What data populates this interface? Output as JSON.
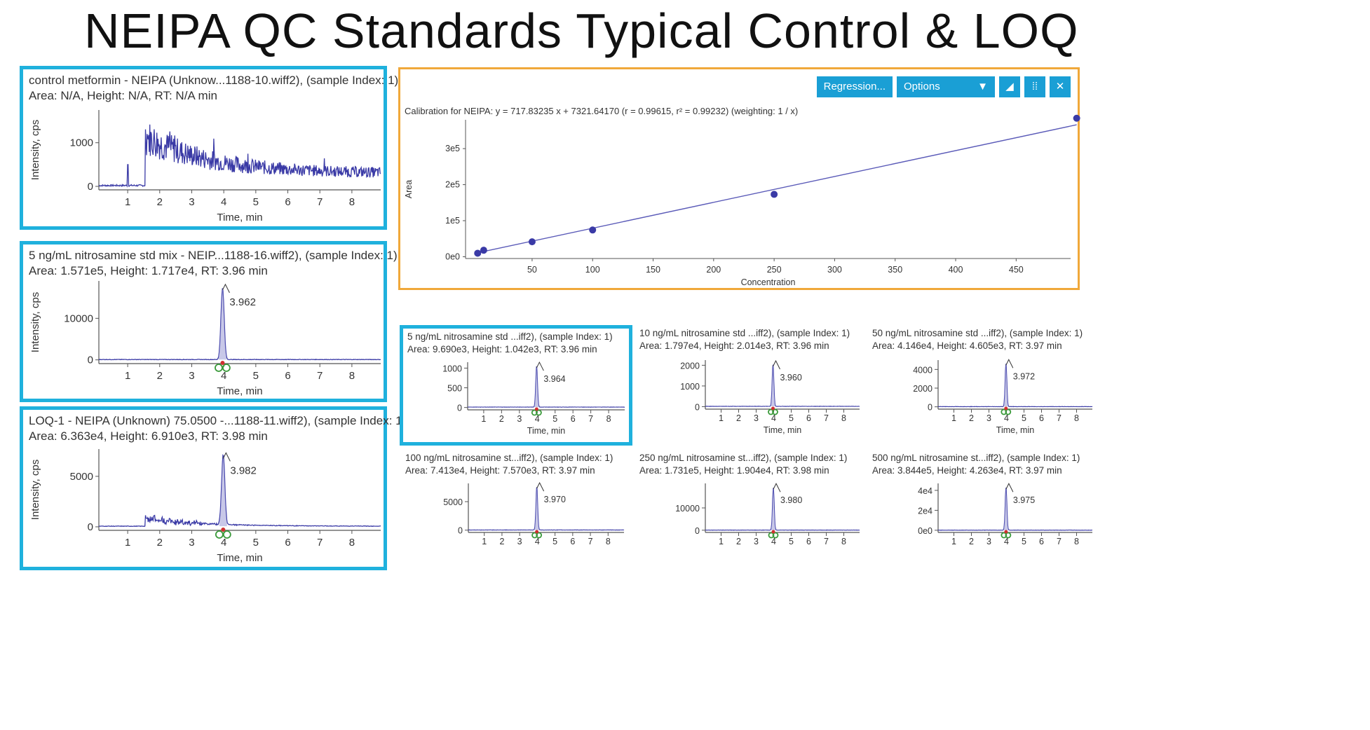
{
  "page": {
    "title": "NEIPA QC Standards Typical Control & LOQ"
  },
  "toolbar": {
    "regression_label": "Regression...",
    "options_label": "Options",
    "dropdown_glyph": "▼",
    "expand_glyph": "◢",
    "grid_glyph": "⁞⁞",
    "close_glyph": "✕"
  },
  "colors": {
    "highlight": "#1fb1dd",
    "calibration_border": "#f0a83a",
    "trace": "#3a3aa6",
    "accent": "#1a9fd5"
  },
  "calibration": {
    "equation": "Calibration for NEIPA: y = 717.83235 x + 7321.64170 (r = 0.99615, r² = 0.99232) (weighting: 1 / x)"
  },
  "chart_data": [
    {
      "id": "control",
      "type": "line",
      "title": "control metformin - NEIPA (Unknow...1188-10.wiff2), (sample Index: 1)",
      "info": "Area: N/A, Height: N/A, RT: N/A min",
      "xlabel": "Time, min",
      "ylabel": "Intensity, cps",
      "xlim": [
        0.1,
        8.9
      ],
      "ylim": [
        -80,
        1750
      ],
      "xticks": [
        "1",
        "2",
        "3",
        "4",
        "5",
        "6",
        "7",
        "8"
      ],
      "yticks": [
        "0",
        "1000"
      ],
      "profile": "noise",
      "series": [
        {
          "name": "NEIPA",
          "baseline": 20,
          "spike_time": 1.0,
          "spike_height": 500,
          "rise_time": 1.55,
          "max_level": 1150,
          "end_level": 300
        }
      ]
    },
    {
      "id": "std5",
      "type": "line",
      "title": "5 ng/mL nitrosamine std mix - NEIP...1188-16.wiff2), (sample Index: 1)",
      "info": "Area: 1.571e5, Height: 1.717e4, RT: 3.96 min",
      "xlabel": "Time, min",
      "ylabel": "Intensity, cps",
      "xlim": [
        0.1,
        8.9
      ],
      "ylim": [
        -900,
        19000
      ],
      "xticks": [
        "1",
        "2",
        "3",
        "4",
        "5",
        "6",
        "7",
        "8"
      ],
      "yticks": [
        "0",
        "10000"
      ],
      "profile": "peak",
      "series": [
        {
          "name": "NEIPA",
          "rt": 3.962,
          "height": 17170,
          "width": 0.07,
          "baseline": 80
        }
      ],
      "peak_label": "3.962"
    },
    {
      "id": "loq1",
      "type": "line",
      "title": "LOQ-1 - NEIPA (Unknown) 75.0500 -...1188-11.wiff2), (sample Index: 1)",
      "info": "Area: 6.363e4, Height: 6.910e3, RT: 3.98 min",
      "xlabel": "Time, min",
      "ylabel": "Intensity, cps",
      "xlim": [
        0.1,
        8.9
      ],
      "ylim": [
        -350,
        7700
      ],
      "xticks": [
        "1",
        "2",
        "3",
        "4",
        "5",
        "6",
        "7",
        "8"
      ],
      "yticks": [
        "0",
        "5000"
      ],
      "profile": "peak_hump",
      "series": [
        {
          "name": "NEIPA",
          "rt": 3.982,
          "height": 6910,
          "width": 0.07,
          "baseline": 60,
          "hump": 900
        }
      ],
      "peak_label": "3.982"
    },
    {
      "id": "calibration",
      "type": "scatter",
      "title": "Calibration for NEIPA",
      "xlabel": "Concentration",
      "ylabel": "Area",
      "xlim": [
        -5,
        495
      ],
      "ylim": [
        -5000,
        380000
      ],
      "xticks": [
        50,
        100,
        150,
        200,
        250,
        300,
        350,
        400,
        450
      ],
      "yticks": [
        "0e0",
        "1e5",
        "2e5",
        "3e5"
      ],
      "ytick_values": [
        0,
        100000,
        200000,
        300000
      ],
      "x": [
        5,
        10,
        50,
        100,
        250,
        500
      ],
      "y": [
        9690,
        17970,
        41460,
        74130,
        173100,
        384400
      ],
      "fit": {
        "slope": 717.83235,
        "intercept": 7321.6417
      }
    },
    {
      "id": "cal5",
      "type": "line",
      "title": "5 ng/mL nitrosamine std ...iff2), (sample Index: 1)",
      "info": "Area: 9.690e3, Height: 1.042e3, RT: 3.96 min",
      "xlabel": "Time, min",
      "xlim": [
        0.1,
        8.9
      ],
      "ylim": [
        -60,
        1150
      ],
      "xticks": [
        "1",
        "2",
        "3",
        "4",
        "5",
        "6",
        "7",
        "8"
      ],
      "yticks": [
        "0",
        "500",
        "1000"
      ],
      "series": [
        {
          "name": "NEIPA",
          "rt": 3.964,
          "height": 1042,
          "width": 0.07,
          "baseline": 10
        }
      ],
      "peak_label": "3.964"
    },
    {
      "id": "cal10",
      "type": "line",
      "title": "10 ng/mL nitrosamine std ...iff2), (sample Index: 1)",
      "info": "Area: 1.797e4, Height: 2.014e3, RT: 3.96 min",
      "xlabel": "Time, min",
      "xlim": [
        0.1,
        8.9
      ],
      "ylim": [
        -120,
        2250
      ],
      "xticks": [
        "1",
        "2",
        "3",
        "4",
        "5",
        "6",
        "7",
        "8"
      ],
      "yticks": [
        "0",
        "1000",
        "2000"
      ],
      "series": [
        {
          "name": "NEIPA",
          "rt": 3.96,
          "height": 2014,
          "width": 0.07,
          "baseline": 15
        }
      ],
      "peak_label": "3.960"
    },
    {
      "id": "cal50",
      "type": "line",
      "title": "50 ng/mL nitrosamine std ...iff2), (sample Index: 1)",
      "info": "Area: 4.146e4, Height: 4.605e3, RT: 3.97 min",
      "xlabel": "Time, min",
      "xlim": [
        0.1,
        8.9
      ],
      "ylim": [
        -250,
        5000
      ],
      "xticks": [
        "1",
        "2",
        "3",
        "4",
        "5",
        "6",
        "7",
        "8"
      ],
      "yticks": [
        "0",
        "2000",
        "4000"
      ],
      "series": [
        {
          "name": "NEIPA",
          "rt": 3.972,
          "height": 4605,
          "width": 0.07,
          "baseline": 20
        }
      ],
      "peak_label": "3.972"
    },
    {
      "id": "cal100",
      "type": "line",
      "title": "100 ng/mL nitrosamine st...iff2), (sample Index: 1)",
      "info": "Area: 7.413e4, Height: 7.570e3, RT: 3.97 min",
      "xlabel": "Time, min",
      "xlim": [
        0.1,
        8.9
      ],
      "ylim": [
        -400,
        8200
      ],
      "xticks": [
        "1",
        "2",
        "3",
        "4",
        "5",
        "6",
        "7",
        "8"
      ],
      "yticks": [
        "0",
        "5000"
      ],
      "series": [
        {
          "name": "NEIPA",
          "rt": 3.97,
          "height": 7570,
          "width": 0.07,
          "baseline": 30
        }
      ],
      "peak_label": "3.970"
    },
    {
      "id": "cal250",
      "type": "line",
      "title": "250 ng/mL nitrosamine st...iff2), (sample Index: 1)",
      "info": "Area: 1.731e5, Height: 1.904e4, RT: 3.98 min",
      "xlabel": "Time, min",
      "xlim": [
        0.1,
        8.9
      ],
      "ylim": [
        -1000,
        21000
      ],
      "xticks": [
        "1",
        "2",
        "3",
        "4",
        "5",
        "6",
        "7",
        "8"
      ],
      "yticks": [
        "0",
        "10000"
      ],
      "series": [
        {
          "name": "NEIPA",
          "rt": 3.98,
          "height": 19040,
          "width": 0.07,
          "baseline": 50
        }
      ],
      "peak_label": "3.980"
    },
    {
      "id": "cal500",
      "type": "line",
      "title": "500 ng/mL nitrosamine st...iff2), (sample Index: 1)",
      "info": "Area: 3.844e5, Height: 4.263e4, RT: 3.97 min",
      "xlabel": "Time, min",
      "xlim": [
        0.1,
        8.9
      ],
      "ylim": [
        -2200,
        47000
      ],
      "xticks": [
        "1",
        "2",
        "3",
        "4",
        "5",
        "6",
        "7",
        "8"
      ],
      "yticks": [
        "0e0",
        "2e4",
        "4e4"
      ],
      "ytick_values": [
        0,
        20000,
        40000
      ],
      "series": [
        {
          "name": "NEIPA",
          "rt": 3.975,
          "height": 42630,
          "width": 0.07,
          "baseline": 80
        }
      ],
      "peak_label": "3.975"
    }
  ]
}
